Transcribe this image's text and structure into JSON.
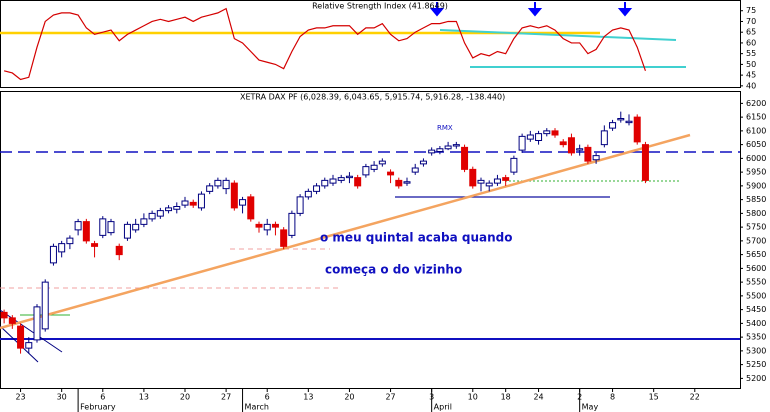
{
  "chart_data": [
    {
      "type": "line",
      "title": "Relative Strength Index (41.8649)",
      "color": "#d40000",
      "values": [
        47,
        46,
        43,
        44,
        58,
        70,
        73,
        74,
        74,
        73,
        67,
        64,
        65,
        66,
        61,
        64,
        66,
        68,
        70,
        71,
        70,
        71,
        72,
        70,
        72,
        73,
        74,
        76,
        62,
        60,
        56,
        52,
        51,
        50,
        48,
        56,
        63,
        66,
        67,
        67,
        68,
        68,
        68,
        64,
        67,
        67,
        69,
        64,
        61,
        62,
        65,
        67,
        69,
        69,
        70,
        70,
        60,
        53,
        55,
        54,
        56,
        55,
        62,
        67,
        68,
        67,
        68,
        66,
        62,
        60,
        60,
        55,
        57,
        63,
        66,
        67,
        66,
        58,
        47
      ],
      "xlim": [
        -0.5,
        89.5
      ],
      "ylim": [
        39,
        80
      ],
      "yticks": [
        40,
        45,
        50,
        55,
        60,
        65,
        70,
        75
      ]
    },
    {
      "type": "candlestick",
      "title": "XETRA DAX PF (6,028.39, 6,043.65, 5,915.74, 5,916.28, -138.440)",
      "up_color": "#000080",
      "down_color": "#e00000",
      "open": [
        5440,
        5420,
        5390,
        5310,
        5340,
        5380,
        5620,
        5660,
        5690,
        5740,
        5770,
        5690,
        5720,
        5730,
        5680,
        5710,
        5740,
        5760,
        5780,
        5790,
        5810,
        5815,
        5830,
        5840,
        5820,
        5880,
        5900,
        5890,
        5910,
        5830,
        5860,
        5760,
        5740,
        5760,
        5740,
        5720,
        5800,
        5860,
        5880,
        5900,
        5910,
        5920,
        5930,
        5930,
        5940,
        5960,
        5980,
        5950,
        5920,
        5910,
        5950,
        5980,
        6020,
        6025,
        6035,
        6045,
        6040,
        5960,
        5910,
        5900,
        5910,
        5930,
        5950,
        6030,
        6070,
        6065,
        6090,
        6100,
        6060,
        6075,
        6030,
        6040,
        5995,
        6050,
        6110,
        6140,
        6130,
        6150,
        6050
      ],
      "high": [
        5450,
        5430,
        5400,
        5350,
        5470,
        5560,
        5690,
        5700,
        5720,
        5780,
        5780,
        5700,
        5790,
        5780,
        5690,
        5770,
        5780,
        5800,
        5810,
        5820,
        5830,
        5840,
        5860,
        5850,
        5880,
        5910,
        5930,
        5930,
        5920,
        5860,
        5870,
        5770,
        5780,
        5770,
        5750,
        5810,
        5870,
        5890,
        5910,
        5930,
        5940,
        5940,
        5950,
        5940,
        5980,
        5990,
        6000,
        5960,
        5930,
        5930,
        5980,
        6000,
        6040,
        6045,
        6060,
        6060,
        6050,
        5970,
        5930,
        5920,
        5940,
        5940,
        6010,
        6090,
        6100,
        6100,
        6110,
        6110,
        6070,
        6090,
        6050,
        6050,
        6020,
        6120,
        6140,
        6170,
        6160,
        6160,
        6060
      ],
      "low": [
        5400,
        5380,
        5290,
        5290,
        5330,
        5370,
        5610,
        5640,
        5670,
        5720,
        5690,
        5640,
        5710,
        5720,
        5630,
        5700,
        5730,
        5750,
        5770,
        5780,
        5800,
        5800,
        5820,
        5820,
        5810,
        5870,
        5890,
        5870,
        5810,
        5800,
        5770,
        5730,
        5720,
        5720,
        5670,
        5710,
        5790,
        5850,
        5870,
        5890,
        5900,
        5910,
        5910,
        5890,
        5930,
        5950,
        5970,
        5910,
        5890,
        5900,
        5940,
        5970,
        6010,
        6015,
        6030,
        6035,
        5950,
        5890,
        5880,
        5880,
        5900,
        5900,
        5940,
        6020,
        6060,
        6050,
        6080,
        6075,
        6040,
        6010,
        6010,
        5980,
        5980,
        6040,
        6100,
        6130,
        6120,
        6050,
        5910
      ],
      "close": [
        5420,
        5400,
        5310,
        5330,
        5460,
        5550,
        5680,
        5690,
        5710,
        5770,
        5700,
        5680,
        5780,
        5770,
        5650,
        5760,
        5760,
        5780,
        5800,
        5810,
        5820,
        5825,
        5845,
        5830,
        5870,
        5900,
        5920,
        5920,
        5820,
        5850,
        5780,
        5750,
        5760,
        5750,
        5680,
        5800,
        5860,
        5880,
        5900,
        5920,
        5925,
        5930,
        5935,
        5900,
        5970,
        5975,
        5990,
        5940,
        5900,
        5915,
        5965,
        5990,
        6030,
        6035,
        6045,
        6050,
        5960,
        5900,
        5920,
        5910,
        5925,
        5920,
        6000,
        6080,
        6085,
        6090,
        6100,
        6085,
        6050,
        6020,
        6035,
        5990,
        6010,
        6100,
        6130,
        6145,
        6135,
        6060,
        5920
      ],
      "xlim": [
        -0.5,
        89.5
      ],
      "ylim": [
        5165,
        6245
      ],
      "yticks": [
        5200,
        5250,
        5300,
        5350,
        5400,
        5450,
        5500,
        5550,
        5600,
        5650,
        5700,
        5750,
        5800,
        5850,
        5900,
        5950,
        6000,
        6050,
        6100,
        6150,
        6200
      ],
      "xticks": [
        {
          "value": 2,
          "label": "23"
        },
        {
          "value": 7,
          "label": "30"
        },
        {
          "value": 12,
          "label": "6"
        },
        {
          "value": 17,
          "label": "13"
        },
        {
          "value": 22,
          "label": "20"
        },
        {
          "value": 27,
          "label": "27"
        },
        {
          "value": 32,
          "label": "6"
        },
        {
          "value": 37,
          "label": "13"
        },
        {
          "value": 42,
          "label": "20"
        },
        {
          "value": 47,
          "label": "27"
        },
        {
          "value": 52,
          "label": "3"
        },
        {
          "value": 57,
          "label": "10"
        },
        {
          "value": 61,
          "label": "18"
        },
        {
          "value": 65,
          "label": "24"
        },
        {
          "value": 70,
          "label": "2"
        },
        {
          "value": 74,
          "label": "8"
        },
        {
          "value": 79,
          "label": "15"
        },
        {
          "value": 84,
          "label": "22"
        }
      ],
      "month_ticks": [
        {
          "value": 9,
          "label": "February"
        },
        {
          "value": 29,
          "label": "March"
        },
        {
          "value": 52,
          "label": "April"
        },
        {
          "value": 70,
          "label": "May"
        }
      ],
      "annotations": [
        "RMX",
        "o meu quintal acaba quando",
        "começa o do  vizinho"
      ]
    }
  ]
}
